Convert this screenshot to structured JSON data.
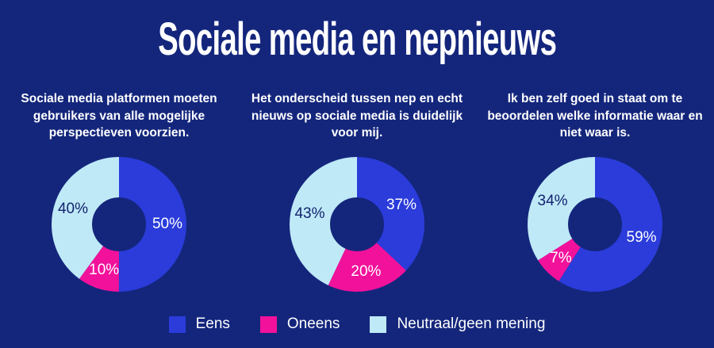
{
  "page": {
    "background_color": "#14267C",
    "title": "Sociale media en nepnieuws"
  },
  "legend": {
    "items": [
      {
        "label": "Eens",
        "color": "#2B3CDB"
      },
      {
        "label": "Oneens",
        "color": "#F2119B"
      },
      {
        "label": "Neutraal/geen mening",
        "color": "#BFE9F7"
      }
    ]
  },
  "slice_label_colors": [
    "#FFFFFF",
    "#FFFFFF",
    "#13236E"
  ],
  "chart_data": [
    {
      "type": "pie",
      "subtype": "donut",
      "title": "Sociale media platformen moeten gebruikers van alle mogelijke perspectieven voorzien.",
      "categories": [
        "Eens",
        "Oneens",
        "Neutraal/geen mening"
      ],
      "values": [
        50,
        10,
        40
      ],
      "unit": "%",
      "start_angle_deg": 0,
      "direction": "clockwise",
      "labels": [
        "50%",
        "10%",
        "40%"
      ]
    },
    {
      "type": "pie",
      "subtype": "donut",
      "title": "Het onderscheid tussen nep en echt nieuws op sociale media is duidelijk voor mij.",
      "categories": [
        "Eens",
        "Oneens",
        "Neutraal/geen mening"
      ],
      "values": [
        37,
        20,
        43
      ],
      "unit": "%",
      "start_angle_deg": 0,
      "direction": "clockwise",
      "labels": [
        "37%",
        "20%",
        "43%"
      ]
    },
    {
      "type": "pie",
      "subtype": "donut",
      "title": "Ik ben zelf goed in staat om te beoordelen welke informatie waar en niet waar is.",
      "categories": [
        "Eens",
        "Oneens",
        "Neutraal/geen mening"
      ],
      "values": [
        59,
        7,
        34
      ],
      "unit": "%",
      "start_angle_deg": 0,
      "direction": "clockwise",
      "labels": [
        "59%",
        "7%",
        "34%"
      ]
    }
  ]
}
